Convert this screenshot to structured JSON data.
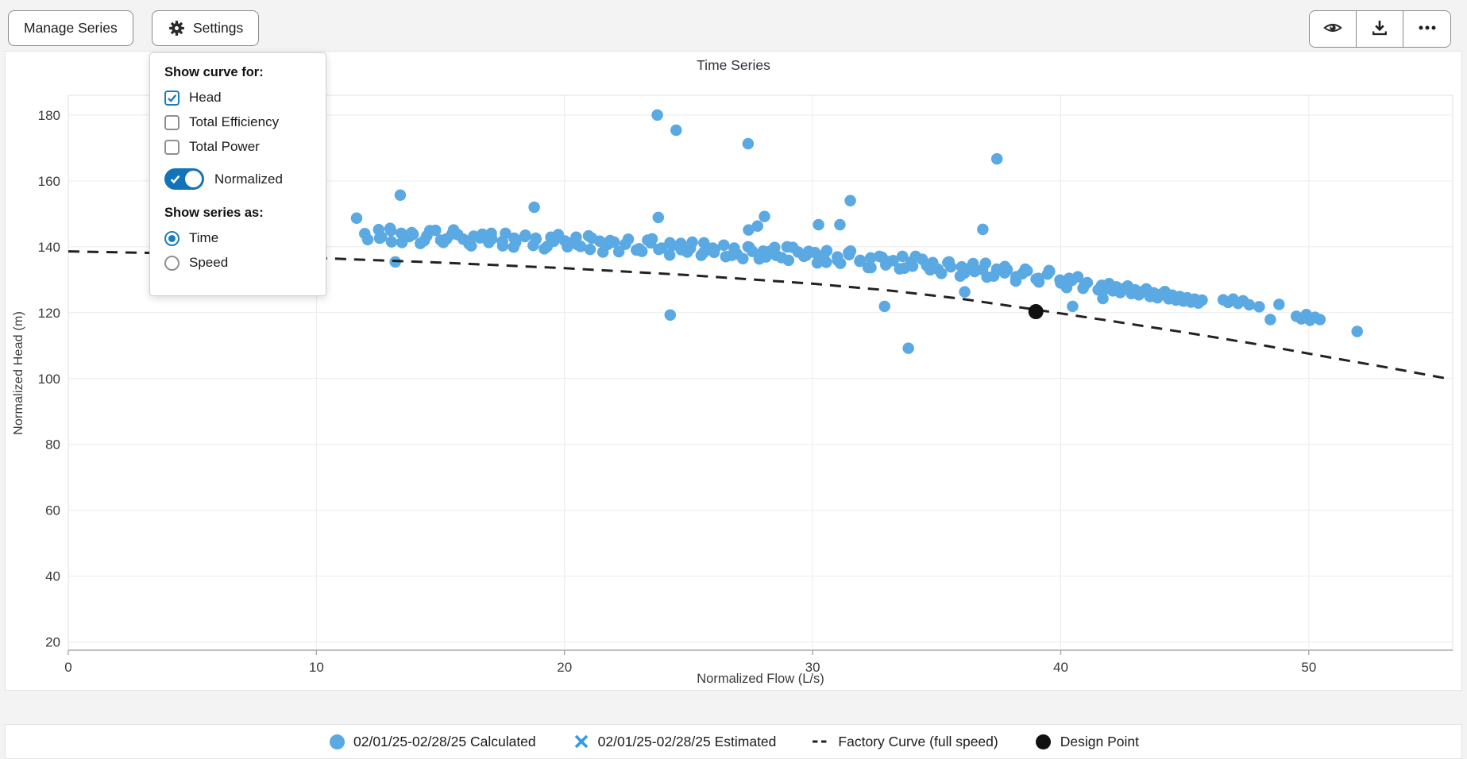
{
  "toolbar": {
    "manage_series_label": "Manage Series",
    "settings_label": "Settings"
  },
  "settings_panel": {
    "curve_heading": "Show curve for:",
    "curve_options": [
      {
        "label": "Head",
        "checked": true
      },
      {
        "label": "Total Efficiency",
        "checked": false
      },
      {
        "label": "Total Power",
        "checked": false
      }
    ],
    "normalized_toggle": {
      "label": "Normalized",
      "on": true
    },
    "series_heading": "Show series as:",
    "series_options": [
      {
        "label": "Time",
        "selected": true
      },
      {
        "label": "Speed",
        "selected": false
      }
    ]
  },
  "colors": {
    "scatter_blue": "#5aa9e2",
    "estimated_blue": "#2f9ce8",
    "curve_black": "#222222",
    "design_black": "#111111",
    "grid": "#ececec",
    "axis_line": "#a8a8a8",
    "tick_text": "#3a3a3a"
  },
  "chart_data": {
    "type": "scatter",
    "title": "Time Series",
    "xlabel": "Normalized Flow (L/s)",
    "ylabel": "Normalized Head (m)",
    "xlim": [
      0,
      55.8
    ],
    "ylim": [
      17.5,
      186
    ],
    "x_ticks": [
      0,
      10,
      20,
      30,
      40,
      50
    ],
    "y_ticks": [
      20,
      40,
      60,
      80,
      100,
      120,
      140,
      160,
      180
    ],
    "grid": true,
    "legend_position": "bottom",
    "series": [
      {
        "name": "02/01/25-02/28/25 Calculated",
        "type": "scatter",
        "marker": "circle",
        "color": "#5aa9e2",
        "marker_size": 14.5,
        "points": [
          [
            11.95,
            144.0
          ],
          [
            12.07,
            142.2
          ],
          [
            12.51,
            145.2
          ],
          [
            12.62,
            142.9
          ],
          [
            12.97,
            145.6
          ],
          [
            13.03,
            141.5
          ],
          [
            13.42,
            144.1
          ],
          [
            13.74,
            143.1
          ],
          [
            13.84,
            144.3
          ],
          [
            14.19,
            141.0
          ],
          [
            14.45,
            143.3
          ],
          [
            14.57,
            144.9
          ],
          [
            15.01,
            142.0
          ],
          [
            15.12,
            141.3
          ],
          [
            15.47,
            143.9
          ],
          [
            15.53,
            145.1
          ],
          [
            15.92,
            142.3
          ],
          [
            16.24,
            140.3
          ],
          [
            16.34,
            143.2
          ],
          [
            16.69,
            143.8
          ],
          [
            16.95,
            141.3
          ],
          [
            17.07,
            142.4
          ],
          [
            17.51,
            140.3
          ],
          [
            17.62,
            144.1
          ],
          [
            17.97,
            142.6
          ],
          [
            18.03,
            141.3
          ],
          [
            18.42,
            143.5
          ],
          [
            18.74,
            140.4
          ],
          [
            18.84,
            142.6
          ],
          [
            19.19,
            139.4
          ],
          [
            19.45,
            142.9
          ],
          [
            19.57,
            141.7
          ],
          [
            20.01,
            141.8
          ],
          [
            20.12,
            140.0
          ],
          [
            20.47,
            142.9
          ],
          [
            20.53,
            140.6
          ],
          [
            20.97,
            143.3
          ],
          [
            21.03,
            139.2
          ],
          [
            21.42,
            141.7
          ],
          [
            21.74,
            140.7
          ],
          [
            21.84,
            141.9
          ],
          [
            22.19,
            138.5
          ],
          [
            22.45,
            140.8
          ],
          [
            22.57,
            142.3
          ],
          [
            23.01,
            139.4
          ],
          [
            23.12,
            138.6
          ],
          [
            23.47,
            141.2
          ],
          [
            23.53,
            142.4
          ],
          [
            23.92,
            139.6
          ],
          [
            24.24,
            137.5
          ],
          [
            24.34,
            140.4
          ],
          [
            24.69,
            141.0
          ],
          [
            24.95,
            138.4
          ],
          [
            25.07,
            139.5
          ],
          [
            25.51,
            137.4
          ],
          [
            25.62,
            141.2
          ],
          [
            25.97,
            139.6
          ],
          [
            26.03,
            138.3
          ],
          [
            26.42,
            140.5
          ],
          [
            26.74,
            137.4
          ],
          [
            26.84,
            139.6
          ],
          [
            27.19,
            136.4
          ],
          [
            27.45,
            139.8
          ],
          [
            27.57,
            138.6
          ],
          [
            28.01,
            138.7
          ],
          [
            28.12,
            136.9
          ],
          [
            28.47,
            139.8
          ],
          [
            28.53,
            137.4
          ],
          [
            28.97,
            140.0
          ],
          [
            29.03,
            135.9
          ],
          [
            29.42,
            138.4
          ],
          [
            29.74,
            137.4
          ],
          [
            29.84,
            138.6
          ],
          [
            30.19,
            135.1
          ],
          [
            30.45,
            137.4
          ],
          [
            30.57,
            138.8
          ],
          [
            31.01,
            135.9
          ],
          [
            31.12,
            135.0
          ],
          [
            31.47,
            137.6
          ],
          [
            31.53,
            138.7
          ],
          [
            31.92,
            135.9
          ],
          [
            32.24,
            133.7
          ],
          [
            32.34,
            136.6
          ],
          [
            32.69,
            137.1
          ],
          [
            32.95,
            134.5
          ],
          [
            33.07,
            135.5
          ],
          [
            33.51,
            133.3
          ],
          [
            33.62,
            137.1
          ],
          [
            33.97,
            135.4
          ],
          [
            34.03,
            134.1
          ],
          [
            34.42,
            136.2
          ],
          [
            34.74,
            133.0
          ],
          [
            34.84,
            135.2
          ],
          [
            35.19,
            131.9
          ],
          [
            35.45,
            135.2
          ],
          [
            35.57,
            133.9
          ],
          [
            36.01,
            133.9
          ],
          [
            36.12,
            132.0
          ],
          [
            36.47,
            134.9
          ],
          [
            36.53,
            132.5
          ],
          [
            36.97,
            135.0
          ],
          [
            37.03,
            130.8
          ],
          [
            37.42,
            133.2
          ],
          [
            37.74,
            132.1
          ],
          [
            37.84,
            133.1
          ],
          [
            38.19,
            129.6
          ],
          [
            38.45,
            131.8
          ],
          [
            38.57,
            133.2
          ],
          [
            39.01,
            130.2
          ],
          [
            39.12,
            129.3
          ],
          [
            39.47,
            131.7
          ],
          [
            39.53,
            132.8
          ],
          [
            39.97,
            129.9
          ],
          [
            40.24,
            127.6
          ],
          [
            40.34,
            130.4
          ],
          [
            40.69,
            130.9
          ],
          [
            40.95,
            128.2
          ],
          [
            41.07,
            129.1
          ],
          [
            41.51,
            126.9
          ],
          [
            12.55,
            142.6
          ],
          [
            13.0,
            144.9
          ],
          [
            13.45,
            141.3
          ],
          [
            13.9,
            143.8
          ],
          [
            14.35,
            141.9
          ],
          [
            14.8,
            145.0
          ],
          [
            15.25,
            142.4
          ],
          [
            15.7,
            143.7
          ],
          [
            16.15,
            140.9
          ],
          [
            16.6,
            142.7
          ],
          [
            17.05,
            144.1
          ],
          [
            17.5,
            141.6
          ],
          [
            17.95,
            139.9
          ],
          [
            18.4,
            143.1
          ],
          [
            18.85,
            142.3
          ],
          [
            19.3,
            140.1
          ],
          [
            19.75,
            143.7
          ],
          [
            20.2,
            141.1
          ],
          [
            20.65,
            140.1
          ],
          [
            21.1,
            142.6
          ],
          [
            21.55,
            138.4
          ],
          [
            22.0,
            141.4
          ],
          [
            22.45,
            140.8
          ],
          [
            22.9,
            139.0
          ],
          [
            23.35,
            142.0
          ],
          [
            23.8,
            139.2
          ],
          [
            24.25,
            141.2
          ],
          [
            24.7,
            139.1
          ],
          [
            25.15,
            141.4
          ],
          [
            25.6,
            138.2
          ],
          [
            26.05,
            139.2
          ],
          [
            26.5,
            137.0
          ],
          [
            26.95,
            137.8
          ],
          [
            27.4,
            140.0
          ],
          [
            27.85,
            136.3
          ],
          [
            28.3,
            138.7
          ],
          [
            28.75,
            136.7
          ],
          [
            29.2,
            139.8
          ],
          [
            29.65,
            137.1
          ],
          [
            30.1,
            138.2
          ],
          [
            30.55,
            135.3
          ],
          [
            31.0,
            136.9
          ],
          [
            31.45,
            138.2
          ],
          [
            31.9,
            135.6
          ],
          [
            32.35,
            133.7
          ],
          [
            32.8,
            136.8
          ],
          [
            33.25,
            135.8
          ],
          [
            33.7,
            133.5
          ],
          [
            34.15,
            137.1
          ],
          [
            34.6,
            134.3
          ],
          [
            35.05,
            133.2
          ],
          [
            35.5,
            135.4
          ],
          [
            35.95,
            131.1
          ],
          [
            36.4,
            133.9
          ],
          [
            36.85,
            133.1
          ],
          [
            37.3,
            131.1
          ],
          [
            37.75,
            134.0
          ],
          [
            38.2,
            130.9
          ],
          [
            38.65,
            132.7
          ],
          [
            39.1,
            130.4
          ],
          [
            39.55,
            132.5
          ],
          [
            40.0,
            129.0
          ],
          [
            40.45,
            129.8
          ],
          [
            40.9,
            127.4
          ],
          [
            41.65,
            128.3
          ],
          [
            41.8,
            127.2
          ],
          [
            41.95,
            128.8
          ],
          [
            42.1,
            126.6
          ],
          [
            42.25,
            127.8
          ],
          [
            42.4,
            126.1
          ],
          [
            42.55,
            127.3
          ],
          [
            42.7,
            128.1
          ],
          [
            42.85,
            125.8
          ],
          [
            43.0,
            126.9
          ],
          [
            43.15,
            125.4
          ],
          [
            43.3,
            126.4
          ],
          [
            43.45,
            127.2
          ],
          [
            43.6,
            124.9
          ],
          [
            43.75,
            126.0
          ],
          [
            43.9,
            124.5
          ],
          [
            44.05,
            125.6
          ],
          [
            44.2,
            126.4
          ],
          [
            44.35,
            124.2
          ],
          [
            44.5,
            125.3
          ],
          [
            44.65,
            123.8
          ],
          [
            44.8,
            124.9
          ],
          [
            44.95,
            123.5
          ],
          [
            45.1,
            124.5
          ],
          [
            45.25,
            123.2
          ],
          [
            45.4,
            124.1
          ],
          [
            45.55,
            122.9
          ],
          [
            45.7,
            123.8
          ],
          [
            46.55,
            123.9
          ],
          [
            46.75,
            123.1
          ],
          [
            46.95,
            124.1
          ],
          [
            47.15,
            122.8
          ],
          [
            47.35,
            123.6
          ],
          [
            47.6,
            122.4
          ],
          [
            48.0,
            121.8
          ],
          [
            48.45,
            117.9
          ],
          [
            48.8,
            122.5
          ],
          [
            49.5,
            118.9
          ],
          [
            49.7,
            118.1
          ],
          [
            49.9,
            119.4
          ],
          [
            50.05,
            117.7
          ],
          [
            50.25,
            118.6
          ],
          [
            50.45,
            117.9
          ],
          [
            51.95,
            114.3
          ],
          [
            11.62,
            148.7
          ],
          [
            13.38,
            155.7
          ],
          [
            18.78,
            152.0
          ],
          [
            23.74,
            180.0
          ],
          [
            24.5,
            175.4
          ],
          [
            27.4,
            171.3
          ],
          [
            37.43,
            166.7
          ],
          [
            31.52,
            154.0
          ],
          [
            23.78,
            148.9
          ],
          [
            27.42,
            145.1
          ],
          [
            27.78,
            146.3
          ],
          [
            28.06,
            149.2
          ],
          [
            30.24,
            146.7
          ],
          [
            31.1,
            146.7
          ],
          [
            36.86,
            145.3
          ],
          [
            13.18,
            135.4
          ],
          [
            24.26,
            119.3
          ],
          [
            32.9,
            121.9
          ],
          [
            33.86,
            109.2
          ],
          [
            36.13,
            126.3
          ],
          [
            40.48,
            121.9
          ],
          [
            41.7,
            124.3
          ]
        ]
      },
      {
        "name": "02/01/25-02/28/25 Estimated",
        "type": "scatter",
        "marker": "x",
        "color": "#2f9ce8",
        "marker_size": 16,
        "points": []
      },
      {
        "name": "Factory Curve (full speed)",
        "type": "line",
        "marker": "dash",
        "color": "#222222",
        "dash": true,
        "points": [
          [
            0,
            138.6
          ],
          [
            5,
            137.9
          ],
          [
            10,
            136.6
          ],
          [
            15,
            135.2
          ],
          [
            20,
            133.5
          ],
          [
            25,
            131.4
          ],
          [
            30,
            128.8
          ],
          [
            33,
            126.8
          ],
          [
            36,
            124.2
          ],
          [
            39,
            120.9
          ],
          [
            42,
            117.5
          ],
          [
            45,
            114.0
          ],
          [
            48,
            110.3
          ],
          [
            51,
            106.2
          ],
          [
            53.5,
            102.9
          ],
          [
            55.7,
            99.8
          ]
        ]
      },
      {
        "name": "Design Point",
        "type": "scatter",
        "marker": "circle",
        "color": "#111111",
        "marker_size": 19,
        "points": [
          [
            39,
            120.3
          ]
        ]
      }
    ]
  }
}
